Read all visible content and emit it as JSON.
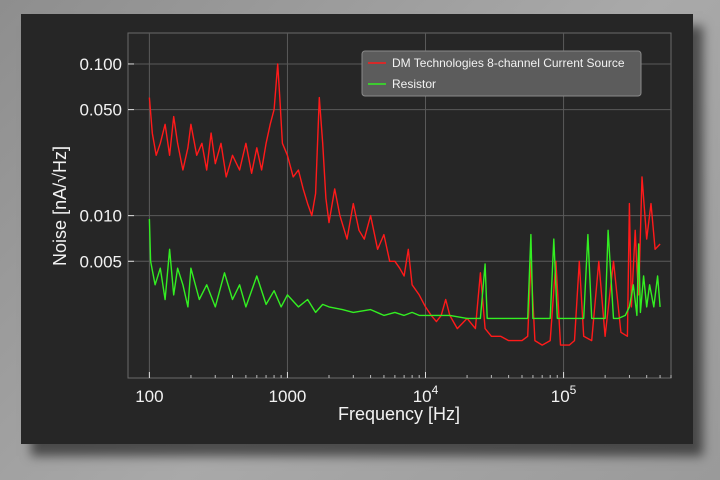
{
  "chart_data": {
    "type": "line",
    "xscale": "log",
    "yscale": "log",
    "xlabel": "Frequency [Hz]",
    "ylabel": "Noise [nA/√Hz]",
    "xlim": [
      70,
      600000
    ],
    "ylim": [
      0.00085,
      0.16
    ],
    "x_ticks": [
      {
        "value": 100,
        "base": "100",
        "exp": ""
      },
      {
        "value": 1000,
        "base": "1000",
        "exp": ""
      },
      {
        "value": 10000,
        "base": "10",
        "exp": "4"
      },
      {
        "value": 100000,
        "base": "10",
        "exp": "5"
      }
    ],
    "y_ticks": [
      {
        "value": 0.1,
        "label": "0.100"
      },
      {
        "value": 0.05,
        "label": "0.050"
      },
      {
        "value": 0.01,
        "label": "0.010"
      },
      {
        "value": 0.005,
        "label": "0.005"
      }
    ],
    "grid": true,
    "legend_position": "top-right",
    "series": [
      {
        "name": "DM Technologies 8-channel Current Source",
        "color": "#ff1a1a",
        "x": [
          100,
          105,
          112,
          120,
          130,
          140,
          150,
          160,
          175,
          190,
          200,
          220,
          240,
          260,
          280,
          300,
          330,
          360,
          400,
          450,
          500,
          550,
          600,
          650,
          700,
          750,
          800,
          850,
          880,
          920,
          1000,
          1100,
          1200,
          1300,
          1400,
          1500,
          1600,
          1700,
          1800,
          1900,
          2000,
          2200,
          2400,
          2700,
          3000,
          3300,
          3600,
          4000,
          4500,
          5000,
          5500,
          6000,
          6500,
          7000,
          7500,
          8000,
          9000,
          10000,
          11000,
          12000,
          13000,
          14000,
          15000,
          17000,
          20000,
          23000,
          25000,
          27000,
          30000,
          35000,
          40000,
          50000,
          55000,
          58000,
          62000,
          70000,
          80000,
          88000,
          95000,
          110000,
          120000,
          130000,
          140000,
          160000,
          180000,
          200000,
          230000,
          260000,
          290000,
          300000,
          310000,
          330000,
          340000,
          350000,
          370000,
          400000,
          430000,
          460000,
          500000
        ],
        "y": [
          0.06,
          0.035,
          0.025,
          0.03,
          0.04,
          0.025,
          0.045,
          0.03,
          0.02,
          0.028,
          0.04,
          0.025,
          0.03,
          0.02,
          0.035,
          0.022,
          0.03,
          0.018,
          0.025,
          0.02,
          0.03,
          0.019,
          0.028,
          0.02,
          0.03,
          0.04,
          0.05,
          0.1,
          0.06,
          0.03,
          0.025,
          0.018,
          0.02,
          0.015,
          0.012,
          0.01,
          0.014,
          0.06,
          0.03,
          0.013,
          0.009,
          0.015,
          0.01,
          0.007,
          0.012,
          0.008,
          0.007,
          0.01,
          0.006,
          0.0075,
          0.005,
          0.005,
          0.0045,
          0.004,
          0.006,
          0.0035,
          0.003,
          0.0025,
          0.0022,
          0.002,
          0.0022,
          0.0028,
          0.0022,
          0.0018,
          0.0021,
          0.0018,
          0.0042,
          0.0018,
          0.0016,
          0.0016,
          0.0015,
          0.0015,
          0.0016,
          0.005,
          0.0015,
          0.0014,
          0.0015,
          0.005,
          0.0014,
          0.0014,
          0.0015,
          0.005,
          0.0016,
          0.0015,
          0.005,
          0.0016,
          0.005,
          0.0017,
          0.0016,
          0.012,
          0.0025,
          0.008,
          0.0045,
          0.003,
          0.018,
          0.007,
          0.012,
          0.006,
          0.0065
        ]
      },
      {
        "name": "Resistor",
        "color": "#33ee22",
        "x": [
          100,
          102,
          110,
          120,
          130,
          140,
          150,
          160,
          175,
          190,
          200,
          230,
          260,
          300,
          350,
          400,
          450,
          500,
          600,
          700,
          800,
          900,
          1000,
          1200,
          1400,
          1600,
          1800,
          2000,
          2500,
          3000,
          4000,
          5000,
          6000,
          7000,
          8000,
          9000,
          10000,
          12000,
          15000,
          20000,
          25000,
          27000,
          28000,
          30000,
          40000,
          50000,
          55000,
          58000,
          60000,
          70000,
          80000,
          85000,
          90000,
          100000,
          120000,
          140000,
          150000,
          160000,
          180000,
          200000,
          210000,
          230000,
          250000,
          280000,
          300000,
          320000,
          340000,
          350000,
          360000,
          380000,
          400000,
          420000,
          450000,
          480000,
          500000
        ],
        "y": [
          0.0095,
          0.005,
          0.0035,
          0.0045,
          0.0028,
          0.006,
          0.003,
          0.0045,
          0.0035,
          0.0025,
          0.0045,
          0.0028,
          0.0035,
          0.0025,
          0.0042,
          0.0028,
          0.0035,
          0.0025,
          0.004,
          0.0026,
          0.0032,
          0.0025,
          0.003,
          0.0025,
          0.0028,
          0.0023,
          0.0026,
          0.0025,
          0.0024,
          0.0023,
          0.0024,
          0.0022,
          0.0023,
          0.0022,
          0.0023,
          0.0022,
          0.0022,
          0.0022,
          0.0022,
          0.0021,
          0.0021,
          0.0048,
          0.0021,
          0.0021,
          0.0021,
          0.0021,
          0.0021,
          0.0075,
          0.0021,
          0.0021,
          0.0021,
          0.007,
          0.0021,
          0.0021,
          0.0021,
          0.0021,
          0.0075,
          0.0021,
          0.0021,
          0.0021,
          0.008,
          0.0021,
          0.0021,
          0.0022,
          0.0025,
          0.0035,
          0.0022,
          0.0065,
          0.0023,
          0.004,
          0.0025,
          0.0035,
          0.0025,
          0.004,
          0.0025
        ]
      }
    ]
  }
}
